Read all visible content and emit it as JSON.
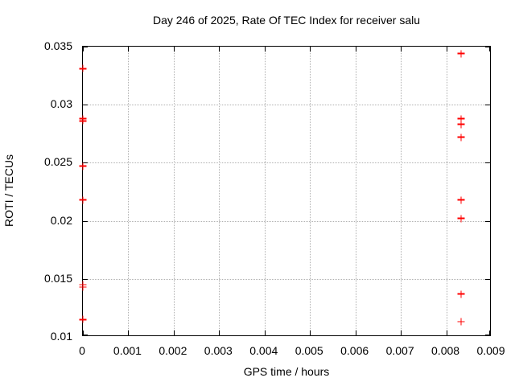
{
  "chart_data": {
    "type": "scatter",
    "title": "Day 246 of 2025, Rate Of TEC Index for receiver salu",
    "xlabel": "GPS time / hours",
    "ylabel": "ROTI / TECUs",
    "xlim": [
      0,
      0.009
    ],
    "ylim": [
      0.01,
      0.035
    ],
    "x_ticks": [
      0,
      0.001,
      0.002,
      0.003,
      0.004,
      0.005,
      0.006,
      0.007,
      0.008,
      0.009
    ],
    "x_tick_labels": [
      "0",
      "0.001",
      "0.002",
      "0.003",
      "0.004",
      "0.005",
      "0.006",
      "0.007",
      "0.008",
      "0.009"
    ],
    "y_ticks": [
      0.01,
      0.015,
      0.02,
      0.025,
      0.03,
      0.035
    ],
    "y_tick_labels": [
      "0.01",
      "0.015",
      "0.02",
      "0.025",
      "0.03",
      "0.035"
    ],
    "grid": true,
    "legend_position": "none",
    "marker": "plus",
    "colors": {
      "marker": "#ff0000",
      "grid": "#b0b0b0",
      "axis": "#000000",
      "text": "#000000",
      "background": "#ffffff"
    },
    "series": [
      {
        "name": "ROTI",
        "points": [
          [
            0,
            0.0331
          ],
          [
            0,
            0.0288
          ],
          [
            0,
            0.0286
          ],
          [
            0,
            0.0247
          ],
          [
            0,
            0.0218
          ],
          [
            0,
            0.0145
          ],
          [
            0,
            0.0143
          ],
          [
            0,
            0.0115
          ],
          [
            0.00833,
            0.0344
          ],
          [
            0.00833,
            0.0288
          ],
          [
            0.00833,
            0.0283
          ],
          [
            0.00833,
            0.0272
          ],
          [
            0.00833,
            0.0218
          ],
          [
            0.00833,
            0.0202
          ],
          [
            0.00833,
            0.0137
          ],
          [
            0.00833,
            0.0113
          ]
        ]
      }
    ]
  }
}
